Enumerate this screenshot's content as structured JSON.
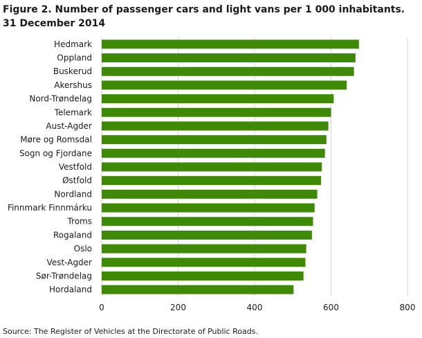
{
  "chart_data": {
    "type": "bar",
    "orientation": "horizontal",
    "title": "Figure 2. Number of passenger cars and light vans per 1 000 inhabitants. 31 December 2014",
    "source": "Source: The Register of Vehicles at the Directorate of Public Roads.",
    "categories": [
      "Hedmark",
      "Oppland",
      "Buskerud",
      "Akershus",
      "Nord-Trøndelag",
      "Telemark",
      "Aust-Agder",
      "Møre og Romsdal",
      "Sogn og Fjordane",
      "Vestfold",
      "Østfold",
      "Nordland",
      "Finnmark Finnmárku",
      "Troms",
      "Rogaland",
      "Oslo",
      "Vest-Agder",
      "Sør-Trøndelag",
      "Hordaland"
    ],
    "values": [
      673,
      664,
      660,
      641,
      607,
      600,
      593,
      588,
      584,
      576,
      574,
      564,
      557,
      553,
      550,
      535,
      533,
      528,
      502
    ],
    "xlim": [
      0,
      800
    ],
    "xticks": [
      0,
      200,
      400,
      600,
      800
    ],
    "grid": "vertical",
    "bar_color": "#3f8a05",
    "grid_color": "#d4d4d4"
  }
}
